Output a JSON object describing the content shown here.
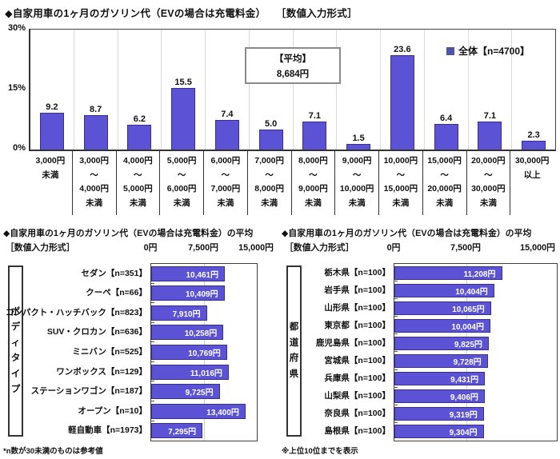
{
  "colors": {
    "bar_fill": "#5B52D5",
    "bar_border": "#37318C",
    "legend_square": "#5253A6",
    "grid_line": "#CFCFCF",
    "frame": "#333333",
    "value_text": "#FFFFFF"
  },
  "chart_data": [
    {
      "id": "monthly-gasoline-cost-distribution",
      "type": "bar",
      "title": "◆自家用車の1ヶ月のガソリン代（EVの場合は充電料金）　　［数値入力形式］",
      "legend": {
        "label": "全体【n=4700】",
        "position": "top-right"
      },
      "average_box": {
        "line1": "【平均】",
        "line2": "8,684円"
      },
      "yticks": [
        "30%",
        "15%",
        "0%"
      ],
      "ylim": [
        0,
        30
      ],
      "grid": true,
      "categories": [
        [
          "3,000円",
          "未満"
        ],
        [
          "3,000円",
          "～",
          "4,000円",
          "未満"
        ],
        [
          "4,000円",
          "～",
          "5,000円",
          "未満"
        ],
        [
          "5,000円",
          "～",
          "6,000円",
          "未満"
        ],
        [
          "6,000円",
          "～",
          "7,000円",
          "未満"
        ],
        [
          "7,000円",
          "～",
          "8,000円",
          "未満"
        ],
        [
          "8,000円",
          "～",
          "9,000円",
          "未満"
        ],
        [
          "9,000円",
          "～",
          "10,000円",
          "未満"
        ],
        [
          "10,000円",
          "～",
          "15,000円",
          "未満"
        ],
        [
          "15,000円",
          "～",
          "20,000円",
          "未満"
        ],
        [
          "20,000円",
          "～",
          "30,000円",
          "未満"
        ],
        [
          "30,000円",
          "以上"
        ]
      ],
      "values": [
        9.2,
        8.7,
        6.2,
        15.5,
        7.4,
        5.0,
        7.1,
        1.5,
        23.6,
        6.4,
        7.1,
        2.3
      ]
    },
    {
      "id": "average-by-body-type",
      "type": "bar-horizontal",
      "title": "◆自家用車の1ヶ月のガソリン代（EVの場合は充電料金）の平均",
      "subtitle": "［数値入力形式］",
      "xtick_labels": [
        "0円",
        "7,500円",
        "15,000円"
      ],
      "xlim": [
        0,
        15000
      ],
      "group_label": "ボディタイプ",
      "categories": [
        "セダン【n=351】",
        "クーペ【n=66】",
        "コンパクト・ハッチバック【n=823】",
        "SUV・クロカン【n=636】",
        "ミニバン【n=525】",
        "ワンボックス【n=129】",
        "ステーションワゴン【n=187】",
        "オープン【n=10】",
        "軽自動車【n=1973】"
      ],
      "values": [
        10461,
        10409,
        7910,
        10258,
        10769,
        11016,
        9725,
        13400,
        7295
      ],
      "value_labels": [
        "10,461円",
        "10,409円",
        "7,910円",
        "10,258円",
        "10,769円",
        "11,016円",
        "9,725円",
        "13,400円",
        "7,295円"
      ],
      "footnote": "*n数が30未満のものは参考値"
    },
    {
      "id": "average-by-prefecture",
      "type": "bar-horizontal",
      "title": "◆自家用車の1ヶ月のガソリン代（EVの場合は充電料金）の平均",
      "subtitle": "［数値入力形式］",
      "xtick_labels": [
        "0円",
        "7,500円",
        "15,000円"
      ],
      "xlim": [
        0,
        15000
      ],
      "group_label": "都道府県",
      "categories": [
        "栃木県【n=100】",
        "岩手県【n=100】",
        "山形県【n=100】",
        "東京都【n=100】",
        "鹿児島県【n=100】",
        "宮城県【n=100】",
        "兵庫県【n=100】",
        "山梨県【n=100】",
        "奈良県【n=100】",
        "島根県【n=100】"
      ],
      "values": [
        11208,
        10404,
        10065,
        10004,
        9825,
        9728,
        9431,
        9406,
        9319,
        9304
      ],
      "value_labels": [
        "11,208円",
        "10,404円",
        "10,065円",
        "10,004円",
        "9,825円",
        "9,728円",
        "9,431円",
        "9,406円",
        "9,319円",
        "9,304円"
      ],
      "footnote": "※上位10位までを表示"
    }
  ]
}
